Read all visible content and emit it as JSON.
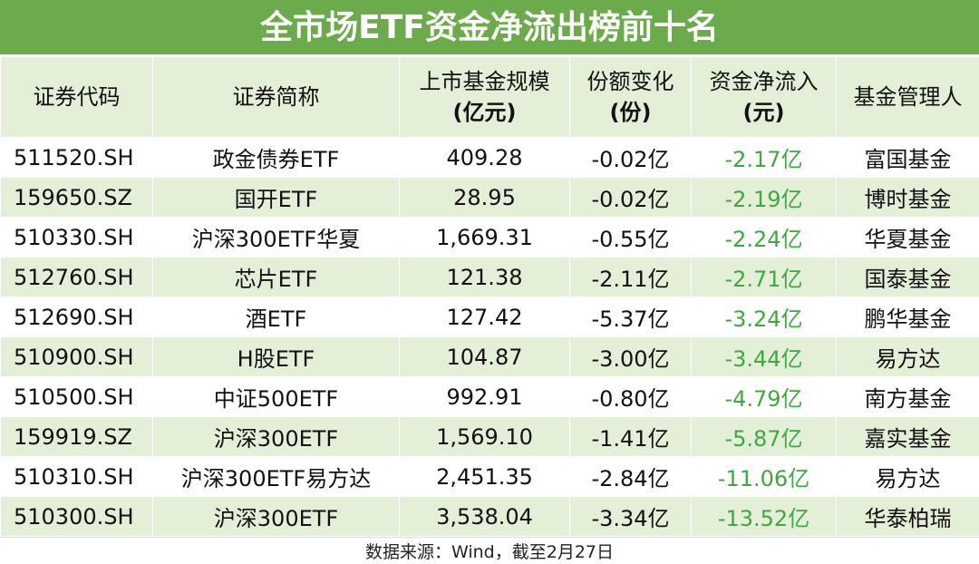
{
  "title": "全市场ETF资金净流出榜前十名",
  "table": {
    "header": [
      [
        "证券代码"
      ],
      [
        "证券简称"
      ],
      [
        "上市基金规模",
        "(亿元)"
      ],
      [
        "份额变化",
        "(份)"
      ],
      [
        "资金净流入",
        "(元)"
      ],
      [
        "基金管理人"
      ]
    ],
    "rows": [
      [
        "511520.SH",
        "政金债券ETF",
        "409.28",
        "-0.02亿",
        "-2.17亿",
        "富国基金"
      ],
      [
        "159650.SZ",
        "国开ETF",
        "28.95",
        "-0.02亿",
        "-2.19亿",
        "博时基金"
      ],
      [
        "510330.SH",
        "沪深300ETF华夏",
        "1,669.31",
        "-0.55亿",
        "-2.24亿",
        "华夏基金"
      ],
      [
        "512760.SH",
        "芯片ETF",
        "121.38",
        "-2.11亿",
        "-2.71亿",
        "国泰基金"
      ],
      [
        "512690.SH",
        "酒ETF",
        "127.42",
        "-5.37亿",
        "-3.24亿",
        "鹏华基金"
      ],
      [
        "510900.SH",
        "H股ETF",
        "104.87",
        "-3.00亿",
        "-3.44亿",
        "易方达"
      ],
      [
        "510500.SH",
        "中证500ETF",
        "992.91",
        "-0.80亿",
        "-4.79亿",
        "南方基金"
      ],
      [
        "159919.SZ",
        "沪深300ETF",
        "1,569.10",
        "-1.41亿",
        "-5.87亿",
        "嘉实基金"
      ],
      [
        "510310.SH",
        "沪深300ETF易方达",
        "2,451.35",
        "-2.84亿",
        "-11.06亿",
        "易方达"
      ],
      [
        "510300.SH",
        "沪深300ETF",
        "3,538.04",
        "-3.34亿",
        "-13.52亿",
        "华泰柏瑞"
      ]
    ]
  },
  "footer": "数据来源：Wind，截至2月27日"
}
